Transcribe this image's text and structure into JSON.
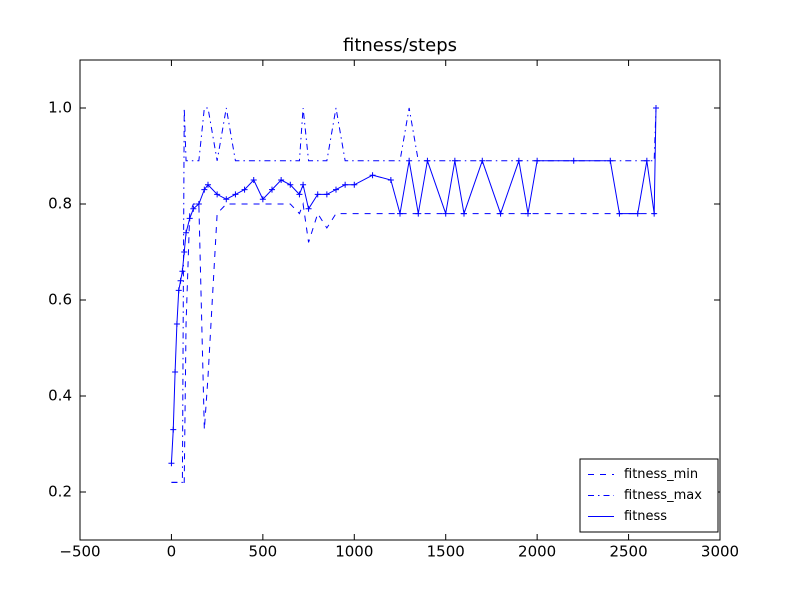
{
  "chart_data": {
    "type": "line",
    "title": "fitness/steps",
    "x": [
      0,
      10,
      20,
      30,
      40,
      50,
      60,
      70,
      80,
      100,
      120,
      150,
      180,
      200,
      250,
      300,
      350,
      400,
      450,
      500,
      550,
      600,
      650,
      700,
      720,
      750,
      800,
      850,
      900,
      950,
      1000,
      1100,
      1200,
      1250,
      1300,
      1350,
      1400,
      1500,
      1550,
      1600,
      1700,
      1800,
      1900,
      1950,
      2000,
      2200,
      2400,
      2450,
      2550,
      2600,
      2640,
      2650
    ],
    "series": [
      {
        "name": "fitness_min",
        "color": "#0000ff",
        "linestyle": "--",
        "values": [
          0.22,
          0.22,
          0.22,
          0.22,
          0.22,
          0.22,
          0.22,
          0.22,
          0.55,
          0.78,
          0.8,
          0.8,
          0.33,
          0.44,
          0.78,
          0.8,
          0.8,
          0.8,
          0.8,
          0.8,
          0.8,
          0.8,
          0.8,
          0.78,
          0.8,
          0.72,
          0.78,
          0.75,
          0.78,
          0.78,
          0.78,
          0.78,
          0.78,
          0.78,
          0.78,
          0.78,
          0.78,
          0.78,
          0.78,
          0.78,
          0.78,
          0.78,
          0.78,
          0.78,
          0.78,
          0.78,
          0.78,
          0.78,
          0.78,
          0.78,
          0.78,
          0.78
        ]
      },
      {
        "name": "fitness_max",
        "color": "#0000ff",
        "linestyle": "-.",
        "values": [
          0.22,
          0.22,
          0.22,
          0.22,
          0.22,
          0.22,
          0.22,
          1.0,
          0.89,
          0.89,
          0.89,
          0.89,
          1.0,
          1.0,
          0.89,
          1.0,
          0.89,
          0.89,
          0.89,
          0.89,
          0.89,
          0.89,
          0.89,
          0.89,
          1.0,
          0.89,
          0.89,
          0.89,
          1.0,
          0.89,
          0.89,
          0.89,
          0.89,
          0.89,
          1.0,
          0.89,
          0.89,
          0.89,
          0.89,
          0.89,
          0.89,
          0.89,
          0.89,
          0.89,
          0.89,
          0.89,
          0.89,
          0.89,
          0.89,
          0.89,
          0.89,
          1.0
        ]
      },
      {
        "name": "fitness",
        "color": "#0000ff",
        "linestyle": "-",
        "marker": "+",
        "values": [
          0.26,
          0.33,
          0.45,
          0.55,
          0.62,
          0.64,
          0.66,
          0.7,
          0.74,
          0.77,
          0.79,
          0.8,
          0.83,
          0.84,
          0.82,
          0.81,
          0.82,
          0.83,
          0.85,
          0.81,
          0.83,
          0.85,
          0.84,
          0.82,
          0.84,
          0.79,
          0.82,
          0.82,
          0.83,
          0.84,
          0.84,
          0.86,
          0.85,
          0.78,
          0.89,
          0.78,
          0.89,
          0.78,
          0.89,
          0.78,
          0.89,
          0.78,
          0.89,
          0.78,
          0.89,
          0.89,
          0.89,
          0.78,
          0.78,
          0.89,
          0.78,
          1.0
        ]
      }
    ],
    "xlim": [
      -500,
      3000
    ],
    "xticks": [
      {
        "value": -500,
        "label": "−500"
      },
      0,
      500,
      1000,
      1500,
      2000,
      2500,
      3000
    ],
    "ylim": [
      0.1,
      1.1
    ],
    "yticks": [
      0.2,
      0.4,
      0.6,
      0.8,
      {
        "value": 1.0,
        "label": "1.0"
      }
    ],
    "legend": "lower right"
  }
}
